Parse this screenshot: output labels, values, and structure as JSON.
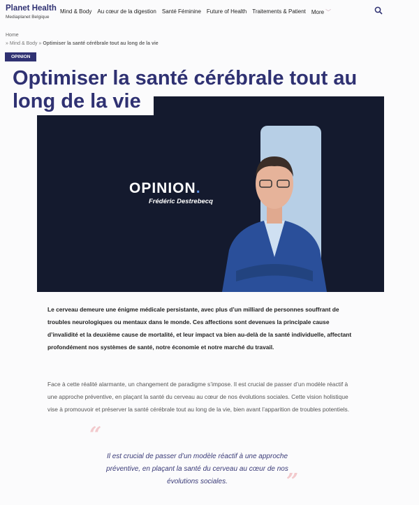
{
  "header": {
    "brand": "Planet Health",
    "brand_sub": "Mediaplanet Belgique",
    "nav": [
      "Mind & Body",
      "Au cœur de la digestion",
      "Santé Féminine",
      "Future of Health",
      "Traitements & Patient",
      "More"
    ],
    "search_icon": "search-icon"
  },
  "breadcrumb": {
    "home": "Home",
    "sep": "»",
    "parent": "Mind & Body",
    "current": "Optimiser la santé cérébrale tout au long de la vie"
  },
  "article": {
    "category": "OPINION",
    "title": "Optimiser la santé cérébrale tout au long de la vie",
    "hero": {
      "label": "OPINION",
      "dot": ".",
      "author": "Frédéric Destrebecq"
    },
    "lead": "Le cerveau demeure une énigme médicale persistante, avec plus d’un milliard de personnes souffrant de troubles neurologiques ou mentaux dans le monde. Ces affections sont devenues la principale cause d’invalidité et la deuxième cause de mortalité, et leur impact va bien au-delà de la santé individuelle, affectant profondément nos systèmes de santé, notre économie et notre marché du travail.",
    "paragraph": "Face à cette réalité alarmante, un changement de paradigme s’impose. Il est crucial de passer d’un modèle réactif à une approche préventive, en plaçant la santé du cerveau au cœur de nos évolutions sociales. Cette vision holistique vise à promouvoir et préserver la santé cérébrale tout au long de la vie, bien avant l’apparition de troubles potentiels.",
    "quote": "Il est crucial de passer d’un modèle réactif à une approche préventive, en plaçant la santé du cerveau au cœur de nos évolutions sociales.",
    "quote_open": "“",
    "quote_close": "”"
  },
  "colors": {
    "brand": "#2f3172",
    "hero_bg": "#141a2e",
    "quote_mark": "#f2c9cc"
  }
}
